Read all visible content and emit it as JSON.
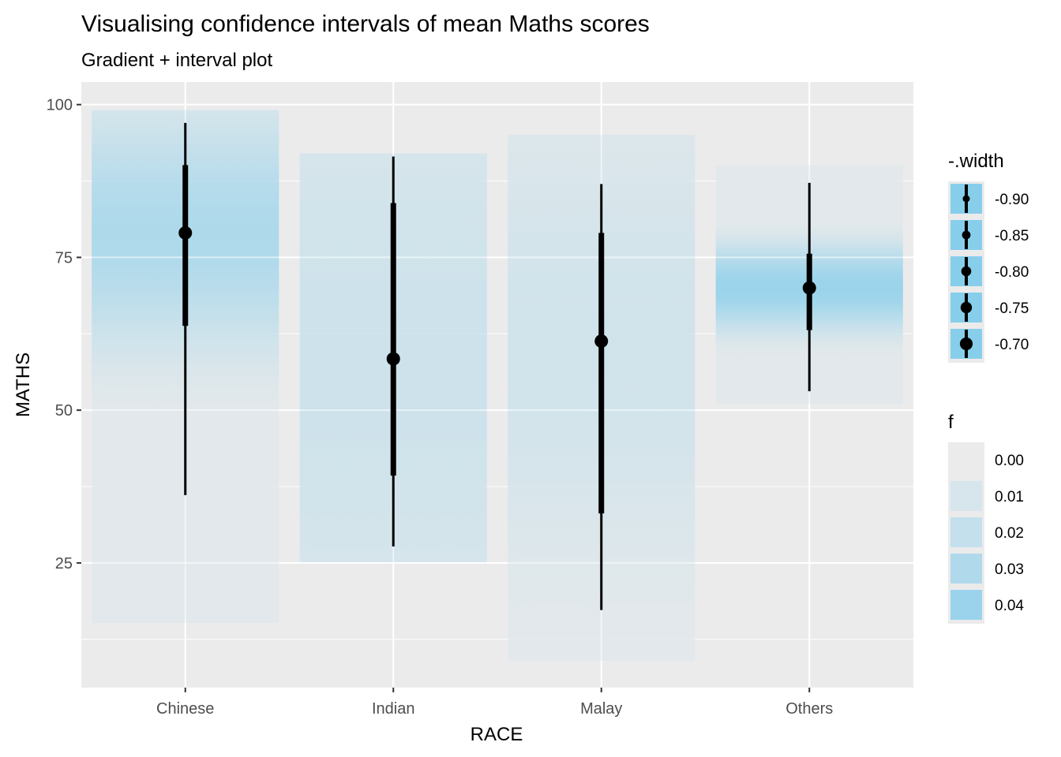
{
  "chart_data": {
    "type": "interval",
    "title": "Visualising confidence intervals of mean Maths scores",
    "subtitle": "Gradient + interval plot",
    "xlabel": "RACE",
    "ylabel": "MATHS",
    "categories": [
      "Chinese",
      "Indian",
      "Malay",
      "Others"
    ],
    "ylim": [
      4.6,
      103.7
    ],
    "y_ticks": [
      25,
      50,
      75,
      100
    ],
    "y_minor_ticks": [
      12.5,
      37.5,
      62.5,
      87.5
    ],
    "grid": true,
    "series": [
      {
        "category": "Chinese",
        "mean": 79.0,
        "interval_thick": [
          63.8,
          90.1
        ],
        "interval_thin": [
          36.1,
          97.0
        ],
        "gradient_range": [
          15.2,
          99.1
        ],
        "gradient_peak": 0.035,
        "gradient_center": 79.0,
        "gradient_spread": 14
      },
      {
        "category": "Indian",
        "mean": 58.4,
        "interval_thick": [
          39.3,
          83.9
        ],
        "interval_thin": [
          27.7,
          91.5
        ],
        "gradient_range": [
          25.1,
          92.0
        ],
        "gradient_peak": 0.017,
        "gradient_center": 58.4,
        "gradient_spread": 40
      },
      {
        "category": "Malay",
        "mean": 61.3,
        "interval_thick": [
          33.1,
          79.0
        ],
        "interval_thin": [
          17.3,
          87.0
        ],
        "gradient_range": [
          9.0,
          95.1
        ],
        "gradient_peak": 0.015,
        "gradient_center": 61.3,
        "gradient_spread": 30
      },
      {
        "category": "Others",
        "mean": 70.0,
        "interval_thick": [
          63.1,
          75.6
        ],
        "interval_thin": [
          53.1,
          87.2
        ],
        "gradient_range": [
          51.0,
          90.1
        ],
        "gradient_peak": 0.046,
        "gradient_center": 70.0,
        "gradient_spread": 5
      }
    ],
    "legends": [
      {
        "title": "-.width",
        "position": "right-top",
        "entries": [
          "-0.90",
          "-0.85",
          "-0.80",
          "-0.75",
          "-0.70"
        ]
      },
      {
        "title": "f",
        "position": "right-middle",
        "entries": [
          "0.00",
          "0.01",
          "0.02",
          "0.03",
          "0.04"
        ],
        "colors": [
          "#ebebeb",
          "#d7e5ec",
          "#c3e0ec",
          "#b0d9eb",
          "#9bd3ec"
        ]
      }
    ],
    "colors": {
      "panel_background": "#ebebeb",
      "grid": "#ffffff",
      "fill_max": "#87ceeb",
      "interval": "#000000"
    }
  }
}
